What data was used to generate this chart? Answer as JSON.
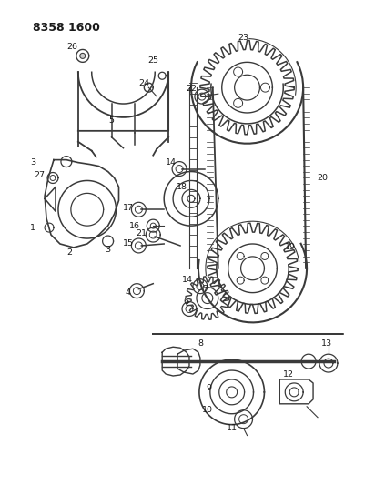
{
  "title": "8358 1600",
  "bg_color": "#ffffff",
  "line_color": "#3a3a3a",
  "label_color": "#1a1a1a",
  "figsize": [
    4.12,
    5.33
  ],
  "dpi": 100
}
